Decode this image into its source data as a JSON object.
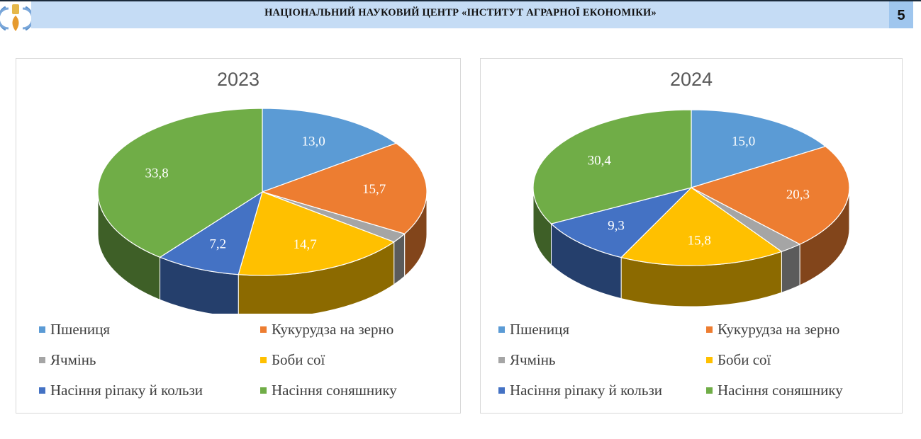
{
  "header": {
    "title": "НАЦІОНАЛЬНИЙ НАУКОВИЙ ЦЕНТР «ІНСТИТУТ АГРАРНОЇ ЕКОНОМІКИ»",
    "page_number": "5",
    "logo_icon": "institute-emblem-icon"
  },
  "colors": {
    "header_bg": "#c5dcf5",
    "page_num_bg": "#9fc6ee",
    "wheat": "#5b9bd5",
    "corn": "#ed7d31",
    "barley": "#a5a5a5",
    "soy": "#ffc000",
    "rapeseed": "#4472c4",
    "sunflower": "#70ad47"
  },
  "legend": [
    {
      "label": "Пшениця",
      "color": "#5b9bd5"
    },
    {
      "label": "Кукурудза на зерно",
      "color": "#ed7d31"
    },
    {
      "label": "Ячмінь",
      "color": "#a5a5a5"
    },
    {
      "label": "Боби сої",
      "color": "#ffc000"
    },
    {
      "label": "Насіння ріпаку й кользи",
      "color": "#4472c4"
    },
    {
      "label": "Насіння соняшнику",
      "color": "#70ad47"
    }
  ],
  "chart_data": [
    {
      "type": "pie",
      "title": "2023",
      "categories": [
        "Пшениця",
        "Кукурудза на зерно",
        "Ячмінь",
        "Боби сої",
        "Насіння ріпаку й кользи",
        "Насіння соняшнику"
      ],
      "values": [
        13.0,
        15.7,
        1.6,
        14.7,
        7.2,
        33.8
      ],
      "labels": [
        "13,0",
        "15,7",
        "",
        "14,7",
        "7,2",
        "33,8"
      ],
      "legend_position": "bottom",
      "style": "3d-pie"
    },
    {
      "type": "pie",
      "title": "2024",
      "categories": [
        "Пшениця",
        "Кукурудза на зерно",
        "Ячмінь",
        "Боби сої",
        "Насіння ріпаку й кользи",
        "Насіння соняшнику"
      ],
      "values": [
        15.0,
        20.3,
        2.2,
        15.8,
        9.3,
        30.4
      ],
      "labels": [
        "15,0",
        "20,3",
        "",
        "15,8",
        "9,3",
        "30,4"
      ],
      "legend_position": "bottom",
      "style": "3d-pie"
    }
  ]
}
